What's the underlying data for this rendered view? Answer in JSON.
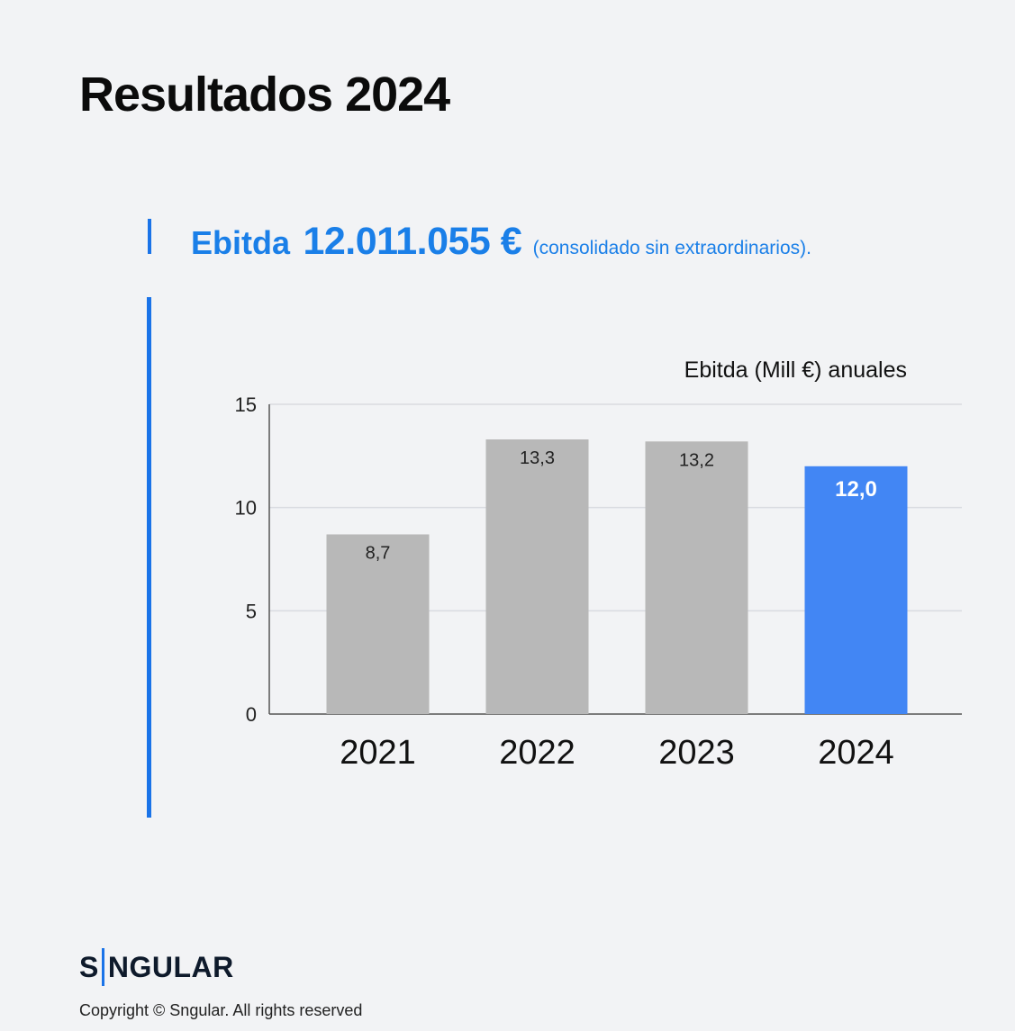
{
  "page": {
    "title": "Resultados 2024"
  },
  "headline": {
    "label": "Ebitda",
    "value": "12.011.055 €",
    "note": "(consolidado sin extraordinarios)."
  },
  "chart_data": {
    "type": "bar",
    "title": "Ebitda (Mill €) anuales",
    "xlabel": "",
    "ylabel": "",
    "categories": [
      "2021",
      "2022",
      "2023",
      "2024"
    ],
    "values": [
      8.7,
      13.3,
      13.2,
      12.0
    ],
    "value_labels": [
      "8,7",
      "13,3",
      "13,2",
      "12,0"
    ],
    "ylim": [
      0,
      15
    ],
    "yticks": [
      0,
      5,
      10,
      15
    ],
    "grid": true,
    "legend": "none",
    "colors": {
      "default_bar": "#b8b8b8",
      "highlight_bar": "#4286f4",
      "highlight_index": 3,
      "grid": "#d9dbe0",
      "axis": "#555555"
    }
  },
  "brand": {
    "logo_text_left": "S",
    "logo_text_right": "NGULAR",
    "accent_color": "#1a73e8"
  },
  "footer": {
    "copyright": "Copyright © Sngular. All rights reserved"
  }
}
